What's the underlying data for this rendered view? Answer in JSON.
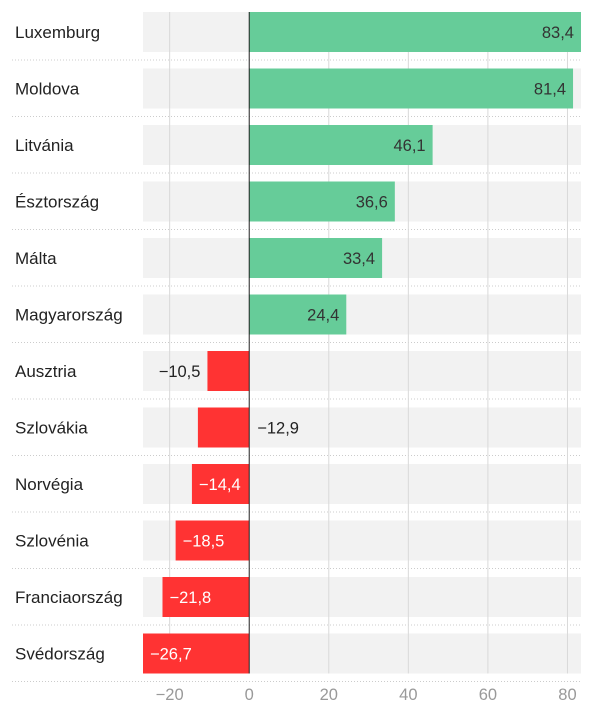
{
  "chart_data": {
    "type": "bar",
    "orientation": "horizontal",
    "categories": [
      "Luxemburg",
      "Moldova",
      "Litvánia",
      "Észtország",
      "Málta",
      "Magyarország",
      "Ausztria",
      "Szlovákia",
      "Norvégia",
      "Szlovénia",
      "Franciaország",
      "Svédország"
    ],
    "values": [
      83.4,
      81.4,
      46.1,
      36.6,
      33.4,
      24.4,
      -10.5,
      -12.9,
      -14.4,
      -18.5,
      -21.8,
      -26.7
    ],
    "value_labels": [
      "83,4",
      "81,4",
      "46,1",
      "36,6",
      "33,4",
      "24,4",
      "−10,5",
      "−12,9",
      "−14,4",
      "−18,5",
      "−21,8",
      "−26,7"
    ],
    "xlim": [
      -26.7,
      83.4
    ],
    "xticks": [
      -20,
      0,
      20,
      40,
      60,
      80
    ],
    "xtick_labels": [
      "−20",
      "0",
      "20",
      "40",
      "60",
      "80"
    ],
    "grid": true,
    "colors": {
      "positive": "#66cc99",
      "negative": "#ff3333",
      "track": "#f2f2f2",
      "grid": "#d9d9d9",
      "zero_line": "#222222"
    }
  }
}
